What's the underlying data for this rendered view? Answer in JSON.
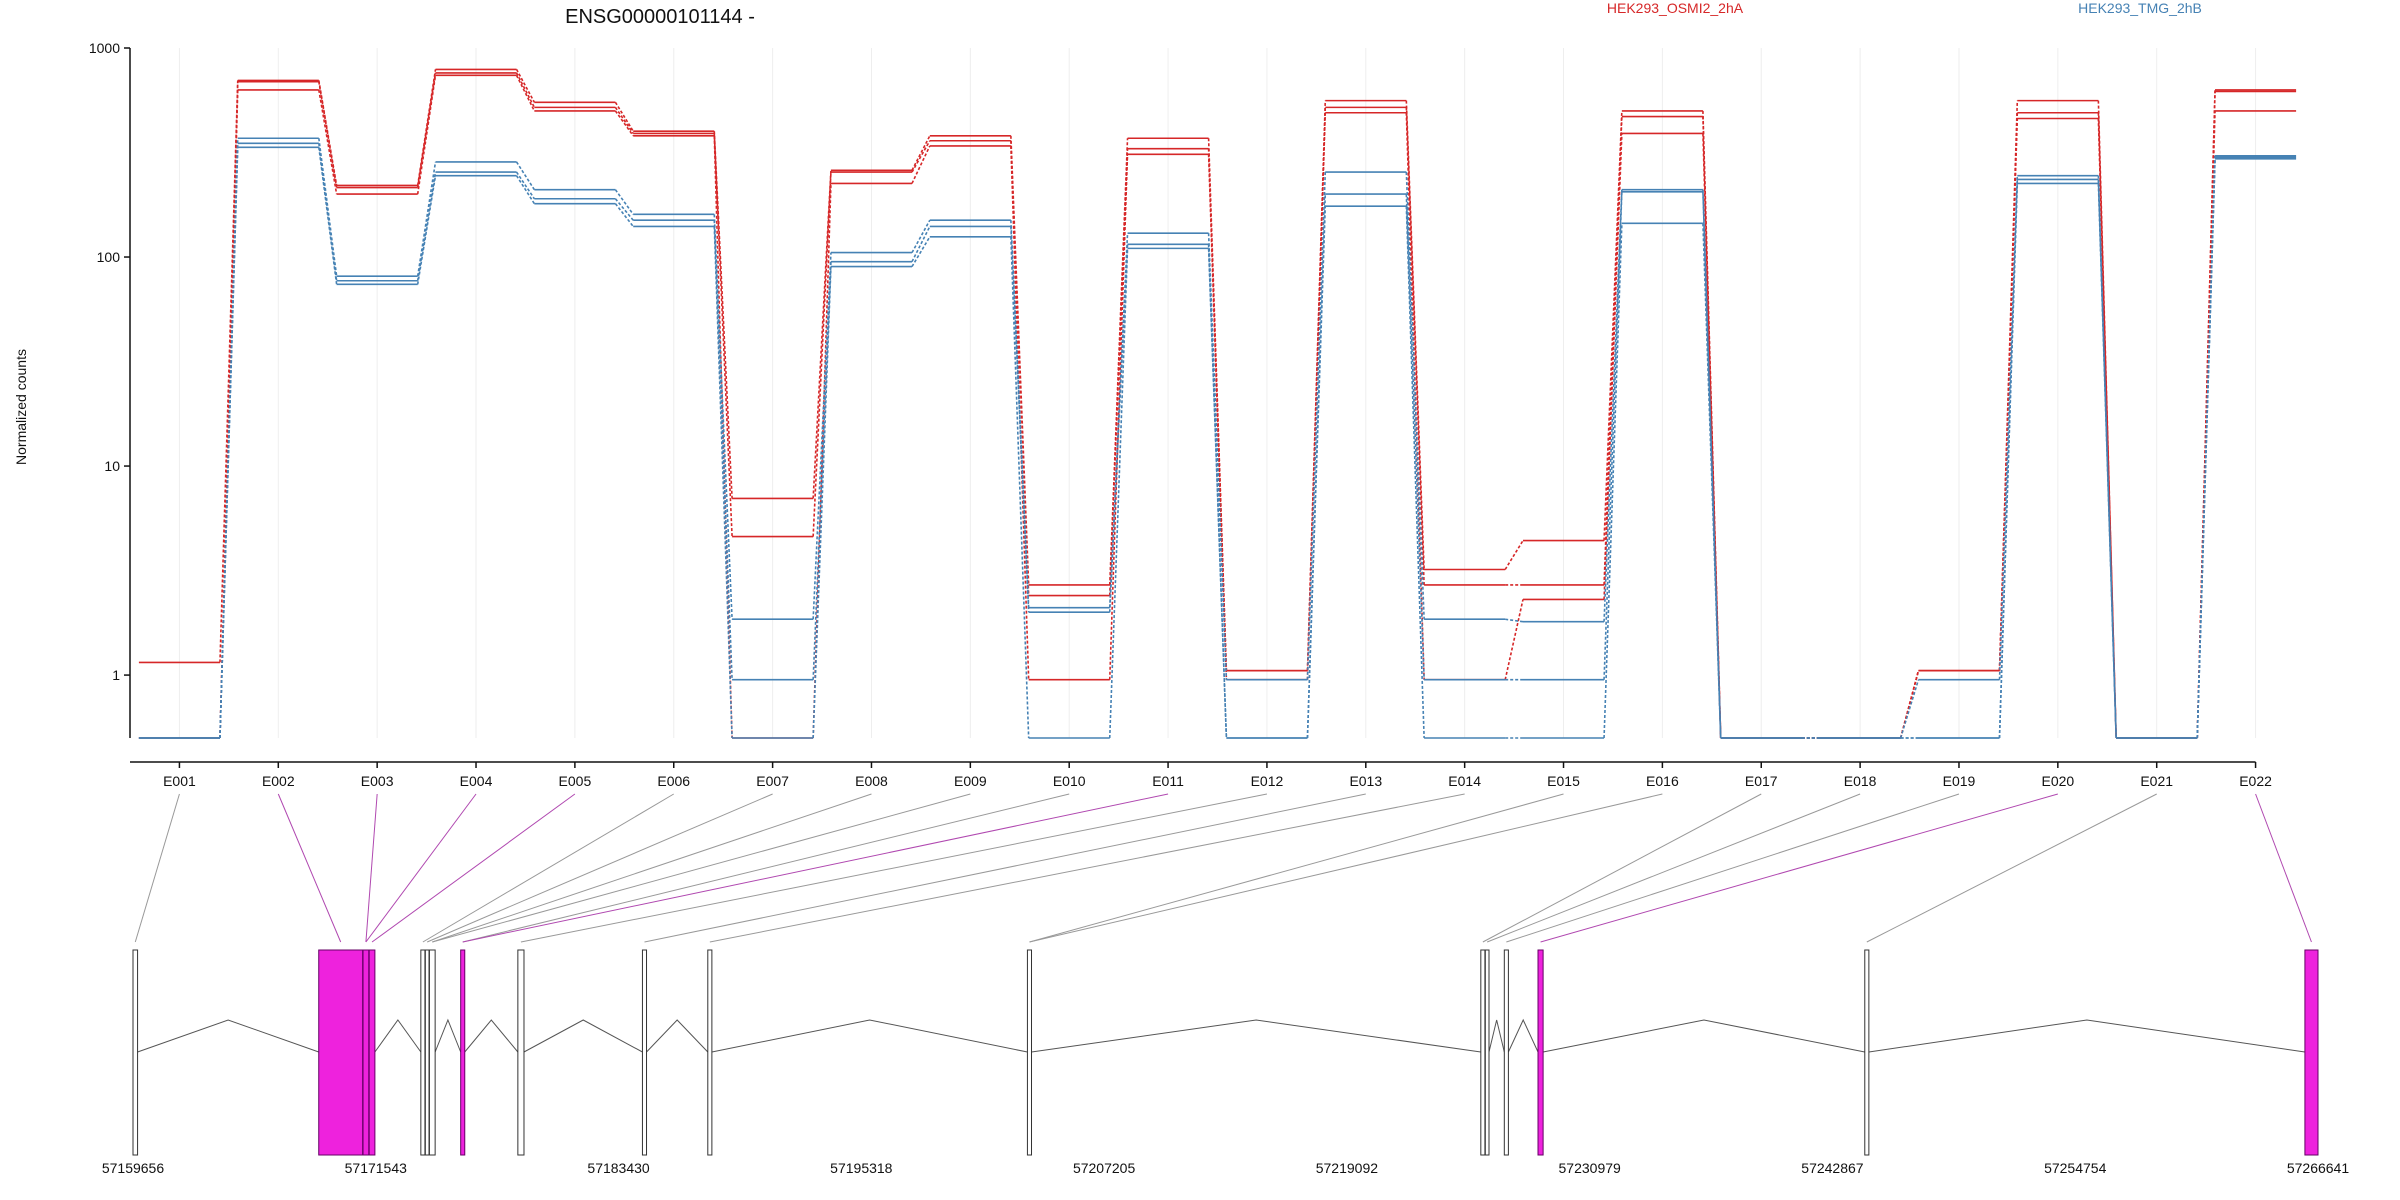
{
  "chart_data": {
    "type": "line",
    "title": "ENSG00000101144 -",
    "ylabel": "Normalized counts",
    "xlabel": "",
    "y_scale": "log",
    "ylim": [
      0.5,
      1000
    ],
    "ytick_labels": [
      "1000",
      "100",
      "10",
      "1"
    ],
    "grid": "vertical lines at each exon",
    "legend_placement": "top-right",
    "categories": [
      "E001",
      "E002",
      "E003",
      "E004",
      "E005",
      "E006",
      "E007",
      "E008",
      "E009",
      "E010",
      "E011",
      "E012",
      "E013",
      "E014",
      "E015",
      "E016",
      "E017",
      "E018",
      "E019",
      "E020",
      "E021",
      "E022"
    ],
    "series": [
      {
        "name": "HEK293_OSMI2_2hA",
        "color": "#d62728",
        "replicates": [
          [
            1.15,
            700,
            220,
            790,
            550,
            400,
            7.0,
            260,
            380,
            2.7,
            370,
            1.05,
            560,
            3.2,
            4.4,
            500,
            0.5,
            0.5,
            1.05,
            560,
            0.5,
            630
          ],
          [
            0.5,
            690,
            215,
            760,
            520,
            390,
            4.6,
            255,
            360,
            2.4,
            330,
            1.05,
            520,
            2.7,
            2.7,
            470,
            0.5,
            0.5,
            1.05,
            490,
            0.5,
            620
          ],
          [
            0.5,
            630,
            200,
            740,
            500,
            380,
            0.5,
            225,
            340,
            0.95,
            310,
            0.95,
            490,
            0.95,
            2.3,
            390,
            0.5,
            0.5,
            1.05,
            460,
            0.5,
            500
          ]
        ]
      },
      {
        "name": "HEK293_TMG_2hB",
        "color": "#4682b4",
        "replicates": [
          [
            0.5,
            370,
            81,
            285,
            210,
            160,
            1.85,
            105,
            150,
            2.1,
            130,
            0.95,
            255,
            1.85,
            1.8,
            210,
            0.5,
            0.5,
            0.95,
            245,
            0.5,
            305
          ],
          [
            0.5,
            350,
            77,
            255,
            190,
            150,
            0.95,
            95,
            140,
            2.0,
            115,
            0.5,
            200,
            0.95,
            0.95,
            205,
            0.5,
            0.5,
            0.5,
            235,
            0.5,
            300
          ],
          [
            0.5,
            335,
            74,
            245,
            180,
            140,
            0.5,
            90,
            125,
            0.5,
            110,
            0.5,
            175,
            0.5,
            0.5,
            145,
            0.5,
            0.5,
            0.5,
            225,
            0.5,
            295
          ]
        ]
      }
    ],
    "legend": [
      {
        "label": "HEK293_OSMI2_2hA",
        "color": "#d62728"
      },
      {
        "label": "HEK293_TMG_2hB",
        "color": "#4682b4"
      }
    ],
    "gene_model": {
      "coordinate_labels": [
        "57159656",
        "57171543",
        "57183430",
        "57195318",
        "57207205",
        "57219092",
        "57230979",
        "57242867",
        "57254754",
        "57266641"
      ],
      "genomic_range": [
        57159656,
        57266641
      ],
      "exons": [
        {
          "start": 57159656,
          "end": 57159880,
          "highlight": false
        },
        {
          "start": 57168750,
          "end": 57170900,
          "highlight": true
        },
        {
          "start": 57170920,
          "end": 57171200,
          "highlight": true
        },
        {
          "start": 57171220,
          "end": 57171500,
          "highlight": true
        },
        {
          "start": 57173750,
          "end": 57173950,
          "highlight": false
        },
        {
          "start": 57173970,
          "end": 57174150,
          "highlight": false
        },
        {
          "start": 57174170,
          "end": 57174450,
          "highlight": false
        },
        {
          "start": 57175700,
          "end": 57175900,
          "highlight": true
        },
        {
          "start": 57178500,
          "end": 57178800,
          "highlight": false
        },
        {
          "start": 57184600,
          "end": 57184800,
          "highlight": false
        },
        {
          "start": 57187800,
          "end": 57188000,
          "highlight": false
        },
        {
          "start": 57203450,
          "end": 57203650,
          "highlight": false
        },
        {
          "start": 57225650,
          "end": 57225850,
          "highlight": false
        },
        {
          "start": 57225870,
          "end": 57226050,
          "highlight": false
        },
        {
          "start": 57226800,
          "end": 57227000,
          "highlight": false
        },
        {
          "start": 57228450,
          "end": 57228700,
          "highlight": true
        },
        {
          "start": 57244450,
          "end": 57244650,
          "highlight": false
        },
        {
          "start": 57266000,
          "end": 57266641,
          "highlight": true
        }
      ],
      "exon_links": [
        {
          "exon": "E001",
          "feature": 0,
          "highlight": false
        },
        {
          "exon": "E002",
          "feature": 1,
          "highlight": true
        },
        {
          "exon": "E003",
          "feature": 2,
          "highlight": true
        },
        {
          "exon": "E004",
          "feature": 2,
          "highlight": true
        },
        {
          "exon": "E005",
          "feature": 3,
          "highlight": true
        },
        {
          "exon": "E006",
          "feature": 4,
          "highlight": false
        },
        {
          "exon": "E007",
          "feature": 5,
          "highlight": false
        },
        {
          "exon": "E008",
          "feature": 6,
          "highlight": false
        },
        {
          "exon": "E009",
          "feature": 6,
          "highlight": false
        },
        {
          "exon": "E010",
          "feature": 7,
          "highlight": false
        },
        {
          "exon": "E011",
          "feature": 7,
          "highlight": true
        },
        {
          "exon": "E012",
          "feature": 8,
          "highlight": false
        },
        {
          "exon": "E013",
          "feature": 9,
          "highlight": false
        },
        {
          "exon": "E014",
          "feature": 10,
          "highlight": false
        },
        {
          "exon": "E015",
          "feature": 11,
          "highlight": false
        },
        {
          "exon": "E016",
          "feature": 11,
          "highlight": false
        },
        {
          "exon": "E017",
          "feature": 12,
          "highlight": false
        },
        {
          "exon": "E018",
          "feature": 13,
          "highlight": false
        },
        {
          "exon": "E019",
          "feature": 14,
          "highlight": false
        },
        {
          "exon": "E020",
          "feature": 15,
          "highlight": true
        },
        {
          "exon": "E021",
          "feature": 16,
          "highlight": false
        },
        {
          "exon": "E022",
          "feature": 17,
          "highlight": true
        }
      ]
    }
  },
  "colors": {
    "osmi2": "#d62728",
    "tmg": "#4682b4",
    "highlight_exon": "#ee22dd",
    "highlight_link": "#b048b0",
    "plain_link": "#999999",
    "gene_line": "#555555"
  }
}
